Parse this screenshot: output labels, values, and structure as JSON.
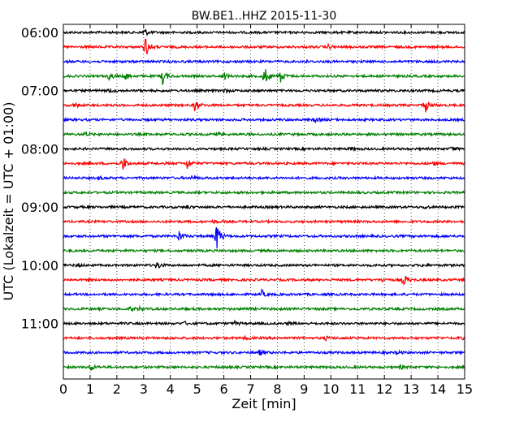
{
  "chart_data": {
    "type": "line",
    "title": "BW.BE1..HHZ 2015-11-30",
    "xlabel": "Zeit  [min]",
    "ylabel": "UTC (Lokalzeit = UTC + 01:00)",
    "xlim": [
      0,
      15
    ],
    "x_ticks": [
      "0",
      "1",
      "2",
      "3",
      "4",
      "5",
      "6",
      "7",
      "8",
      "9",
      "10",
      "11",
      "12",
      "13",
      "14",
      "15"
    ],
    "y_ticks": [
      "06:00",
      "07:00",
      "08:00",
      "09:00",
      "10:00",
      "11:00"
    ],
    "grid": "vertical dotted",
    "trace_interval_min": 15,
    "trace_colors": [
      "#000000",
      "#ff0000",
      "#0000ff",
      "#008000"
    ],
    "traces": [
      {
        "start": "06:00",
        "events": [
          [
            3.0,
            1.0
          ]
        ]
      },
      {
        "start": "06:15",
        "events": [
          [
            3.05,
            3.0
          ],
          [
            9.9,
            0.4
          ]
        ]
      },
      {
        "start": "06:30",
        "events": [
          [
            9.0,
            0.4
          ]
        ]
      },
      {
        "start": "06:45",
        "events": [
          [
            1.7,
            1.0
          ],
          [
            2.3,
            0.9
          ],
          [
            3.7,
            2.0
          ],
          [
            6.0,
            0.9
          ],
          [
            7.5,
            2.5
          ],
          [
            8.1,
            1.5
          ]
        ]
      },
      {
        "start": "07:00",
        "events": [
          [
            1.7,
            0.5
          ],
          [
            6.0,
            0.4
          ]
        ]
      },
      {
        "start": "07:15",
        "events": [
          [
            0.4,
            0.6
          ],
          [
            4.9,
            1.5
          ],
          [
            13.5,
            2.0
          ]
        ]
      },
      {
        "start": "07:30",
        "events": [
          [
            9.4,
            0.6
          ]
        ]
      },
      {
        "start": "07:45",
        "events": [
          [
            0.8,
            0.5
          ],
          [
            5.8,
            0.4
          ]
        ]
      },
      {
        "start": "08:00",
        "events": [
          [
            10.7,
            0.4
          ],
          [
            14.5,
            0.6
          ]
        ]
      },
      {
        "start": "08:15",
        "events": [
          [
            2.2,
            2.0
          ],
          [
            4.6,
            1.5
          ],
          [
            13.8,
            0.5
          ]
        ]
      },
      {
        "start": "08:30",
        "events": [
          [
            1.3,
            0.4
          ],
          [
            4.8,
            0.4
          ]
        ]
      },
      {
        "start": "08:45",
        "events": []
      },
      {
        "start": "09:00",
        "events": [
          [
            4.6,
            0.4
          ],
          [
            13.5,
            0.4
          ]
        ]
      },
      {
        "start": "09:15",
        "events": [
          [
            5.6,
            0.4
          ]
        ]
      },
      {
        "start": "09:30",
        "events": [
          [
            4.3,
            1.5
          ],
          [
            5.7,
            4.0
          ]
        ]
      },
      {
        "start": "09:45",
        "events": []
      },
      {
        "start": "10:00",
        "events": [
          [
            0.5,
            0.5
          ],
          [
            3.5,
            1.0
          ],
          [
            13.4,
            0.4
          ]
        ]
      },
      {
        "start": "10:15",
        "events": [
          [
            11.9,
            0.5
          ],
          [
            12.7,
            1.5
          ]
        ]
      },
      {
        "start": "10:30",
        "events": [
          [
            7.4,
            1.0
          ]
        ]
      },
      {
        "start": "10:45",
        "events": [
          [
            2.5,
            0.4
          ],
          [
            2.8,
            0.4
          ],
          [
            6.7,
            0.4
          ]
        ]
      },
      {
        "start": "11:00",
        "events": [
          [
            4.5,
            0.4
          ],
          [
            6.4,
            0.4
          ],
          [
            8.4,
            0.4
          ]
        ]
      },
      {
        "start": "11:15",
        "events": [
          [
            6.8,
            0.4
          ],
          [
            9.8,
            0.4
          ],
          [
            14.8,
            0.4
          ]
        ]
      },
      {
        "start": "11:30",
        "events": [
          [
            7.3,
            0.7
          ],
          [
            12.5,
            0.4
          ]
        ]
      },
      {
        "start": "11:45",
        "events": [
          [
            1.0,
            1.0
          ],
          [
            12.6,
            0.4
          ]
        ]
      }
    ]
  }
}
